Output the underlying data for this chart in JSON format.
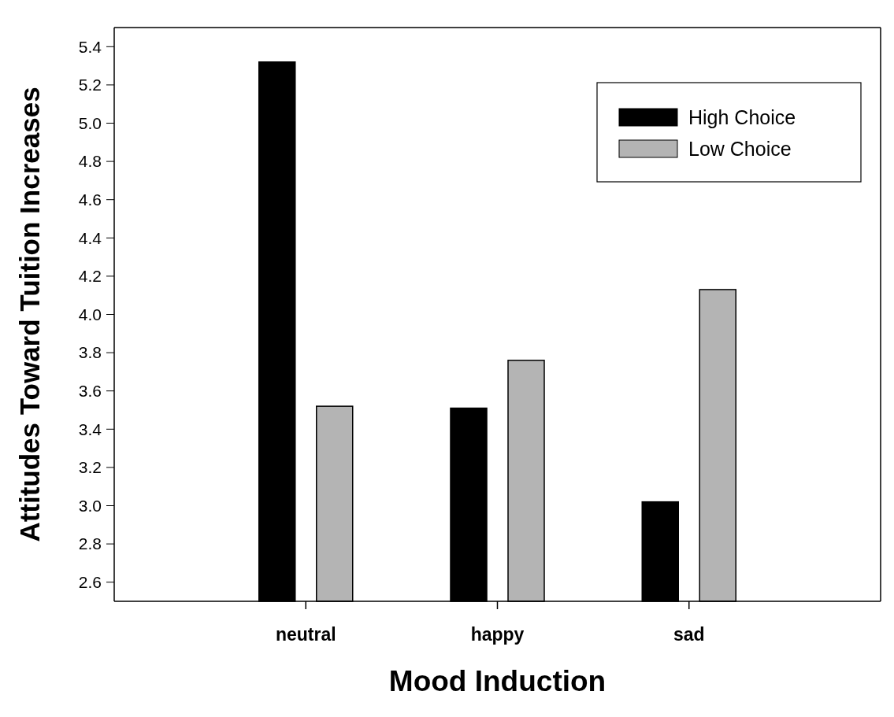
{
  "chart_data": {
    "type": "bar",
    "xlabel": "Mood Induction",
    "ylabel": "Attitudes Toward Tuition Increases",
    "categories": [
      "neutral",
      "happy",
      "sad"
    ],
    "series": [
      {
        "name": "High Choice",
        "color": "#000000",
        "values": [
          5.32,
          3.51,
          3.02
        ]
      },
      {
        "name": "Low Choice",
        "color": "#b4b4b4",
        "values": [
          3.52,
          3.76,
          4.13
        ]
      }
    ],
    "ylim": [
      2.5,
      5.5
    ],
    "yticks": [
      2.6,
      2.8,
      {
        "value": 3,
        "label": "3.0"
      },
      3.2,
      3.4,
      3.6,
      3.8,
      {
        "value": 4,
        "label": "4.0"
      },
      4.2,
      4.4,
      4.6,
      4.8,
      {
        "value": 5,
        "label": "5.0"
      },
      5.2,
      5.4
    ],
    "legend": "top right"
  }
}
